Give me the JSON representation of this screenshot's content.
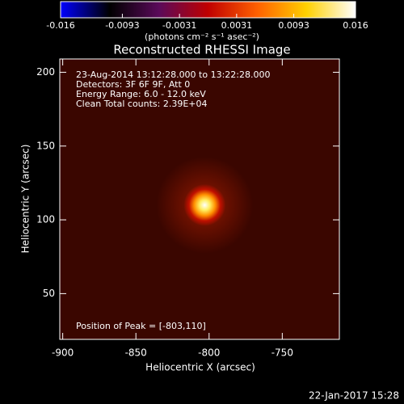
{
  "chart_data": {
    "type": "image",
    "title": "Reconstructed RHESSI Image",
    "xlabel": "Heliocentric X (arcsec)",
    "ylabel": "Heliocentric Y (arcsec)",
    "xlim": [
      -902,
      -711
    ],
    "xticks": [
      -900,
      -850,
      -800,
      -750
    ],
    "ylim": [
      19,
      209
    ],
    "yticks": [
      50,
      100,
      150,
      200
    ],
    "annotations": [
      "23-Aug-2014 13:12:28.000 to 13:22:28.000",
      "Detectors: 3F 6F 9F, Att 0",
      "Energy Range: 6.0 - 12.0 keV",
      "Clean    Total counts: 2.39E+04"
    ],
    "peak_label": "Position of Peak = [-803,110]",
    "peak": {
      "x": -803,
      "y": 110
    },
    "colorbar": {
      "label": "(photons cm⁻² s⁻¹ asec⁻²)",
      "lim": [
        -0.016,
        0.016
      ],
      "ticks": [
        -0.016,
        -0.0093,
        -0.0031,
        0.0031,
        0.0093,
        0.016
      ],
      "colors": [
        "#0000ff",
        "#000000",
        "#5a0a5a",
        "#c00000",
        "#ff6000",
        "#ffd000",
        "#ffffff"
      ]
    },
    "background_color": "#3a0600",
    "footer": "22-Jan-2017 15:28"
  }
}
